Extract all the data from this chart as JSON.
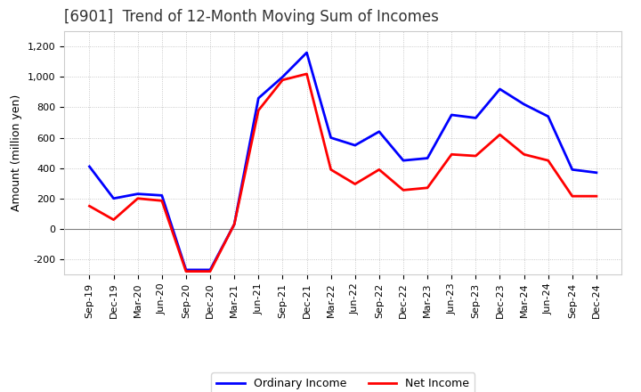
{
  "title": "[6901]  Trend of 12-Month Moving Sum of Incomes",
  "ylabel": "Amount (million yen)",
  "x_labels": [
    "Sep-19",
    "Dec-19",
    "Mar-20",
    "Jun-20",
    "Sep-20",
    "Dec-20",
    "Mar-21",
    "Jun-21",
    "Sep-21",
    "Dec-21",
    "Mar-22",
    "Jun-22",
    "Sep-22",
    "Dec-22",
    "Mar-23",
    "Jun-23",
    "Sep-23",
    "Dec-23",
    "Mar-24",
    "Jun-24",
    "Sep-24",
    "Dec-24"
  ],
  "ordinary_income": [
    410,
    200,
    230,
    220,
    -270,
    -270,
    30,
    860,
    1000,
    1160,
    600,
    550,
    640,
    450,
    465,
    750,
    730,
    920,
    820,
    740,
    390,
    370
  ],
  "net_income": [
    150,
    60,
    200,
    185,
    -280,
    -280,
    30,
    780,
    980,
    1020,
    390,
    295,
    390,
    255,
    270,
    490,
    480,
    620,
    490,
    450,
    215,
    215
  ],
  "ordinary_color": "#0000FF",
  "net_color": "#FF0000",
  "ylim": [
    -300,
    1300
  ],
  "yticks": [
    -200,
    0,
    200,
    400,
    600,
    800,
    1000,
    1200
  ],
  "background_color": "#FFFFFF",
  "grid_color": "#AAAAAA",
  "title_color": "#333333",
  "title_fontsize": 12,
  "axis_fontsize": 8,
  "legend_labels": [
    "Ordinary Income",
    "Net Income"
  ]
}
